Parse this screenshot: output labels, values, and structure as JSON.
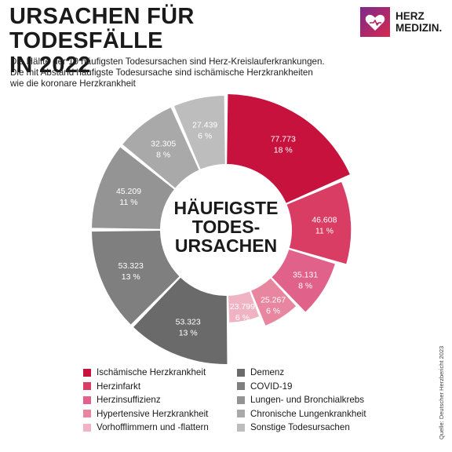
{
  "header": {
    "title_line1": "URSACHEN FÜR TODESFÄLLE",
    "title_line2": "IN 2022",
    "subtitle_line1": "Die Hälfte der 10 häufigsten Todesursachen sind Herz-Kreislauferkrankungen.",
    "subtitle_line2": "Die mit Abstand häufigste Todesursache sind ischämische Herzkrankheiten",
    "subtitle_line3": "wie die koronare Herzkrankheit"
  },
  "logo": {
    "line1": "HERZ",
    "line2": "MEDIZIN.",
    "icon": "heart-logo-icon",
    "color_from": "#7b2a8c",
    "color_to": "#d8284f"
  },
  "center": {
    "line1": "HÄUFIGSTE",
    "line2": "TODES-",
    "line3": "URSACHEN"
  },
  "source": "Quelle: Deutscher Herzbericht 2023",
  "chart_data": {
    "type": "pie",
    "donut": true,
    "categories": [
      "Ischämische Herzkrankheit",
      "Herzinfarkt",
      "Herzinsuffizienz",
      "Hypertensive Herzkrankheit",
      "Vorhofflimmern und -flattern",
      "Demenz",
      "COVID-19",
      "Lungen- und Bronchialkrebs",
      "Chronische Lungenkrankheit",
      "Sonstige Todesursachen"
    ],
    "values": [
      77773,
      46608,
      35131,
      25267,
      23799,
      53323,
      53323,
      45209,
      32305,
      27439
    ],
    "value_labels": [
      "77.773",
      "46.608",
      "35.131",
      "25.267",
      "23.799",
      "53.323",
      "53.323",
      "45.209",
      "32.305",
      "27.439"
    ],
    "percent_labels": [
      "18 %",
      "11 %",
      "8 %",
      "6 %",
      "6 %",
      "13 %",
      "13 %",
      "11 %",
      "8 %",
      "6 %"
    ],
    "colors": [
      "#c8123e",
      "#d93d63",
      "#e0618a",
      "#e8869f",
      "#f0b3c4",
      "#6a6a6a",
      "#7f7f7f",
      "#949494",
      "#a9a9a9",
      "#bdbdbd"
    ],
    "legend": {
      "placement": "bottom",
      "columns": 2
    }
  }
}
